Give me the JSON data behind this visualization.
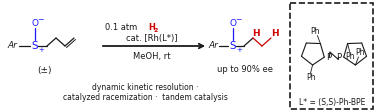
{
  "bg_color": "#ffffff",
  "color_blue": "#1a1aff",
  "color_red": "#cc0000",
  "color_black": "#1a1a1a",
  "text_racemic": "(±)",
  "text_cond1": "0.1 atm ",
  "text_H": "H",
  "text_2": "2",
  "text_cond2": "cat. [Rh(L*)]",
  "text_cond3": "MeOH, rt",
  "text_yield": "up to 90% ee",
  "text_footer1": "dynamic kinetic resolution ·",
  "text_footer2": "catalyzed racemization ·  tandem catalysis",
  "text_ligand": "L* = (S,S)-Ph-BPE",
  "figw": 3.78,
  "figh": 1.12,
  "dpi": 100
}
